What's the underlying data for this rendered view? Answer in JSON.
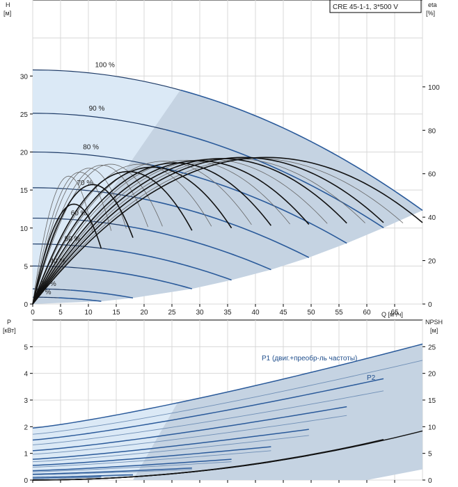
{
  "chart_data": [
    {
      "type": "line",
      "title": "CRE 45-1-1, 3*500 V",
      "left_axis": {
        "label_top": "H",
        "label_unit": "[м]",
        "ticks": [
          0,
          5,
          10,
          15,
          20,
          25,
          30
        ],
        "range": [
          0,
          40
        ]
      },
      "right_axis": {
        "label_top": "eta",
        "label_unit": "[%]",
        "ticks": [
          0,
          20,
          40,
          60,
          80,
          100
        ],
        "range": [
          0,
          140
        ]
      },
      "x_axis": {
        "label": "Q [м³/ч]",
        "ticks": [
          0,
          5,
          10,
          15,
          20,
          25,
          30,
          35,
          40,
          45,
          50,
          55,
          60,
          65
        ],
        "range": [
          0,
          70
        ]
      },
      "head_curves": [
        {
          "name": "100 %",
          "H0": 30.8,
          "qmax": 70
        },
        {
          "name": "90 %",
          "H0": 25.1,
          "qmax": 63
        },
        {
          "name": "80 %",
          "H0": 20.0,
          "qmax": 56.4
        },
        {
          "name": "70 %",
          "H0": 15.3,
          "qmax": 49.6
        },
        {
          "name": "60 %",
          "H0": 11.3,
          "qmax": 42.8
        },
        {
          "name": "50 %",
          "H0": 7.9,
          "qmax": 35.7
        },
        {
          "name": "40 %",
          "H0": 5.0,
          "qmax": 28.6
        },
        {
          "name": "25 %",
          "H0": 2.0,
          "qmax": 18.0
        },
        {
          "name": "17 %",
          "H0": 0.9,
          "qmax": 12.3
        }
      ],
      "efficiency_curves_bold": [
        {
          "qmax": 70,
          "eta_peak": 67.5
        },
        {
          "qmax": 63,
          "eta_peak": 67.5
        },
        {
          "qmax": 56.4,
          "eta_peak": 67
        },
        {
          "qmax": 49.6,
          "eta_peak": 66
        },
        {
          "qmax": 42.8,
          "eta_peak": 65
        },
        {
          "qmax": 35.7,
          "eta_peak": 63
        },
        {
          "qmax": 28.6,
          "eta_peak": 61
        },
        {
          "qmax": 18.0,
          "eta_peak": 55
        },
        {
          "qmax": 12.3,
          "eta_peak": 46
        }
      ],
      "efficiency_curves_thin": [
        {
          "qmax": 66.5,
          "eta_peak": 73
        },
        {
          "qmax": 59.7,
          "eta_peak": 73
        },
        {
          "qmax": 52.9,
          "eta_peak": 72.5
        },
        {
          "qmax": 46.2,
          "eta_peak": 72
        },
        {
          "qmax": 39.3,
          "eta_peak": 71.5
        },
        {
          "qmax": 32.1,
          "eta_peak": 70
        },
        {
          "qmax": 23.3,
          "eta_peak": 70
        },
        {
          "qmax": 20.7,
          "eta_peak": 69.5
        },
        {
          "qmax": 16.8,
          "eta_peak": 68
        },
        {
          "qmax": 14.1,
          "eta_peak": 66
        },
        {
          "qmax": 10.8,
          "eta_peak": 64
        }
      ],
      "grid": true
    },
    {
      "type": "line",
      "left_axis": {
        "label_top": "P",
        "label_unit": "[кВт]",
        "ticks": [
          0,
          1,
          2,
          3,
          4,
          5
        ],
        "range": [
          0,
          6
        ]
      },
      "right_axis": {
        "label_top": "NPSH",
        "label_unit": "[м]",
        "ticks": [
          0,
          5,
          10,
          15,
          20,
          25
        ],
        "range": [
          0,
          30
        ]
      },
      "series_labels": {
        "p1": "P1 (двиг.+преобр-ль частоты)",
        "p2": "P2"
      },
      "power_curves": [
        {
          "p0": 1.95,
          "pmax": 5.1,
          "qmax": 70
        },
        {
          "p0": 1.5,
          "pmax": 3.8,
          "qmax": 63
        },
        {
          "p0": 1.1,
          "pmax": 2.75,
          "qmax": 56.4
        },
        {
          "p0": 0.78,
          "pmax": 1.9,
          "qmax": 49.6
        },
        {
          "p0": 0.55,
          "pmax": 1.25,
          "qmax": 42.8
        },
        {
          "p0": 0.35,
          "pmax": 0.78,
          "qmax": 35.7
        },
        {
          "p0": 0.22,
          "pmax": 0.45,
          "qmax": 28.6
        },
        {
          "p0": 0.1,
          "pmax": 0.2,
          "qmax": 18.0
        },
        {
          "p0": 0.06,
          "pmax": 0.12,
          "qmax": 12.3
        }
      ],
      "npsh_curves": [
        {
          "qmax": 70,
          "npsh_max": 9.2
        },
        {
          "qmax": 63,
          "npsh_max": 7.6
        },
        {
          "qmax": 56.4,
          "npsh_max": 6.0
        },
        {
          "qmax": 49.6,
          "npsh_max": 4.6
        },
        {
          "qmax": 42.8,
          "npsh_max": 3.4
        }
      ],
      "x_range": [
        0,
        70
      ],
      "grid": true
    }
  ]
}
